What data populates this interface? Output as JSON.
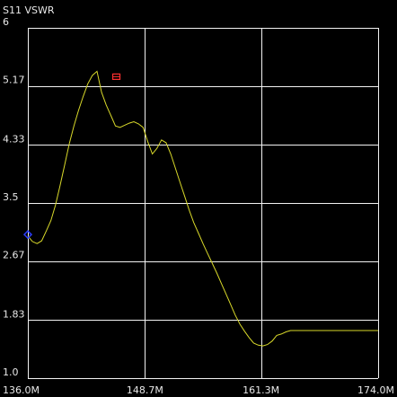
{
  "chart_data": {
    "type": "line",
    "title": "S11 VSWR",
    "x_unit": "MHz",
    "x_ticks": [
      {
        "value": 136.0,
        "label": "136.0M"
      },
      {
        "value": 148.7,
        "label": "148.7M"
      },
      {
        "value": 161.3,
        "label": "161.3M"
      },
      {
        "value": 174.0,
        "label": "174.0M"
      }
    ],
    "y_ticks": [
      {
        "value": 1.0,
        "label": "1.0"
      },
      {
        "value": 1.83,
        "label": "1.83"
      },
      {
        "value": 2.67,
        "label": "2.67"
      },
      {
        "value": 3.5,
        "label": "3.5"
      },
      {
        "value": 4.33,
        "label": "4.33"
      },
      {
        "value": 5.17,
        "label": "5.17"
      },
      {
        "value": 6.0,
        "label": "6"
      }
    ],
    "xlim": [
      136.0,
      174.0
    ],
    "ylim": [
      1.0,
      6.0
    ],
    "grid": true,
    "trace_color": "#d9d92a",
    "marker_colors": {
      "blue": "#2a3cff",
      "red": "#ff3030"
    },
    "series": [
      {
        "x": [
          136.0,
          136.5,
          137.0,
          137.5,
          138.0,
          138.5,
          139.0,
          139.5,
          140.0,
          140.5,
          141.0,
          141.5,
          142.0,
          142.5,
          143.0,
          143.5,
          144.0,
          144.5,
          145.0,
          145.5,
          146.0,
          146.5,
          147.0,
          147.5,
          148.0,
          148.5,
          149.0,
          149.5,
          150.0,
          150.5,
          151.0,
          151.5,
          152.0,
          152.5,
          153.0,
          153.5,
          154.0,
          154.5,
          155.0,
          155.5,
          156.0,
          156.5,
          157.0,
          157.5,
          158.0,
          158.5,
          159.0,
          159.5,
          160.0,
          160.5,
          161.0,
          161.5,
          162.0,
          162.5,
          163.0,
          163.5,
          164.0,
          164.5,
          165.0,
          165.5,
          166.0,
          166.5,
          167.0,
          167.5,
          168.0,
          168.5,
          169.0,
          169.5,
          170.0,
          170.5,
          171.0,
          171.5,
          172.0,
          172.5,
          173.0,
          173.5,
          174.0
        ],
        "y": [
          3.03,
          2.95,
          2.92,
          2.96,
          3.1,
          3.25,
          3.47,
          3.75,
          4.05,
          4.35,
          4.6,
          4.82,
          5.02,
          5.2,
          5.32,
          5.38,
          5.08,
          4.9,
          4.75,
          4.6,
          4.58,
          4.61,
          4.64,
          4.66,
          4.63,
          4.58,
          4.38,
          4.2,
          4.28,
          4.4,
          4.36,
          4.2,
          4.0,
          3.8,
          3.6,
          3.4,
          3.22,
          3.07,
          2.92,
          2.78,
          2.64,
          2.5,
          2.35,
          2.2,
          2.05,
          1.9,
          1.77,
          1.67,
          1.58,
          1.5,
          1.47,
          1.46,
          1.48,
          1.53,
          1.61,
          1.63,
          1.66,
          1.68,
          1.68,
          1.68,
          1.68,
          1.68,
          1.68,
          1.68,
          1.68,
          1.68,
          1.68,
          1.68,
          1.68,
          1.68,
          1.68,
          1.68,
          1.68,
          1.68,
          1.68,
          1.68,
          1.68
        ]
      }
    ],
    "markers": [
      {
        "label": "",
        "color": "blue",
        "x": 136.0,
        "y": 3.05
      },
      {
        "label": "",
        "color": "red",
        "x": 145.6,
        "y": 5.29
      }
    ]
  }
}
